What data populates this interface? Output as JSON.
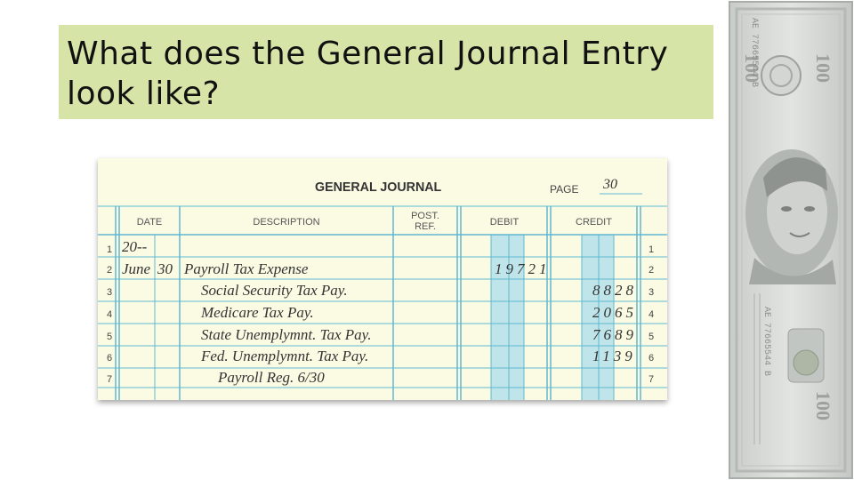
{
  "slide": {
    "title_line1": "What does the General Journal Entry",
    "title_line2": "look like?"
  },
  "journal": {
    "title": "GENERAL JOURNAL",
    "page_label": "PAGE",
    "page_number": "30",
    "headers": {
      "date": "DATE",
      "description": "DESCRIPTION",
      "post_ref_1": "POST.",
      "post_ref_2": "REF.",
      "debit": "DEBIT",
      "credit": "CREDIT"
    },
    "row_numbers": [
      "1",
      "2",
      "3",
      "4",
      "5",
      "6",
      "7"
    ],
    "rows": [
      {
        "year": "20--"
      },
      {
        "month": "June",
        "day": "30",
        "description": "Payroll Tax Expense",
        "debit": "19721"
      },
      {
        "description": "Social Security Tax Pay.",
        "credit": "8828"
      },
      {
        "description": "Medicare Tax Pay.",
        "credit": "2065"
      },
      {
        "description": "State Unemplymnt. Tax Pay.",
        "credit": "7689"
      },
      {
        "description": "Fed. Unemplymnt. Tax Pay.",
        "credit": "1139"
      },
      {
        "description": "Payroll Reg. 6/30"
      }
    ]
  },
  "banknote": {
    "denomination": "100",
    "serial": "AE 77665544 B"
  },
  "colors": {
    "title_bg": "#d6e4a8",
    "journal_bg": "#fbfbe4",
    "rule_blue": "#5fb8d0",
    "money_column_fill": "#bfe4ea"
  }
}
